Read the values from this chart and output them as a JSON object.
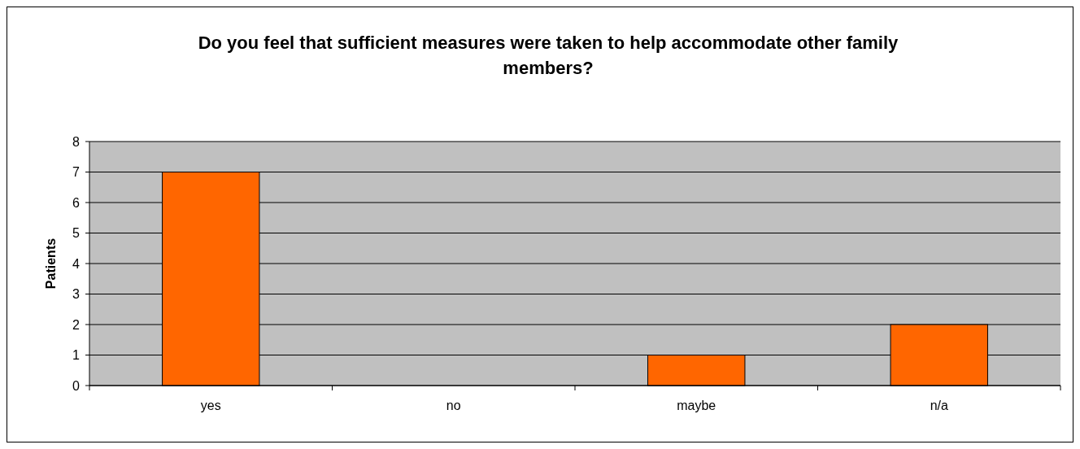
{
  "chart_data": {
    "type": "bar",
    "title": "Do you feel that sufficient measures were taken to help accommodate other family members?",
    "ylabel": "Patients",
    "categories": [
      "yes",
      "no",
      "maybe",
      "n/a"
    ],
    "series": [
      {
        "color": "#ff6600",
        "values": [
          7,
          0,
          1,
          2
        ]
      }
    ],
    "ylim": [
      0,
      8
    ],
    "yticks": [
      0,
      1,
      2,
      3,
      4,
      5,
      6,
      7,
      8
    ],
    "grid": "y"
  }
}
